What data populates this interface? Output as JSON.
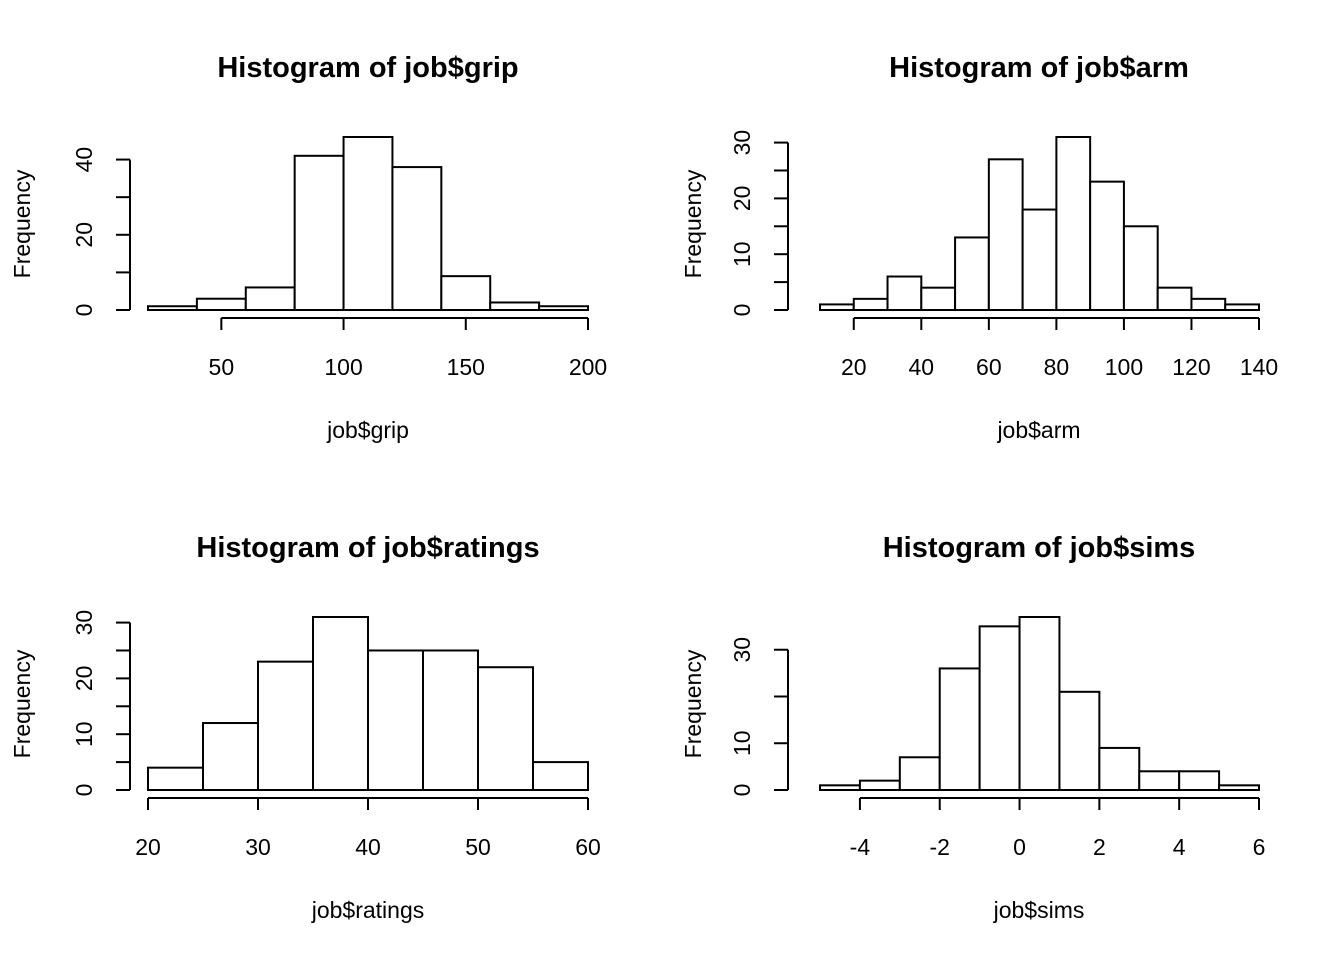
{
  "chart_data": [
    {
      "type": "bar",
      "title": "Histogram of job$grip",
      "xlabel": "job$grip",
      "ylabel": "Frequency",
      "bins": [
        [
          20,
          40
        ],
        [
          40,
          60
        ],
        [
          60,
          80
        ],
        [
          80,
          100
        ],
        [
          100,
          120
        ],
        [
          120,
          140
        ],
        [
          140,
          160
        ],
        [
          160,
          180
        ],
        [
          180,
          200
        ]
      ],
      "values": [
        1,
        3,
        6,
        41,
        46,
        38,
        9,
        2,
        1
      ],
      "xticks": [
        50,
        100,
        150,
        200
      ],
      "xtick_labels": [
        "50",
        "100",
        "150",
        "200"
      ],
      "yticks": [
        0,
        10,
        20,
        30,
        40
      ],
      "ytick_labels": [
        "0",
        "",
        "20",
        "",
        "40"
      ],
      "xlim": [
        20,
        200
      ],
      "ylim": [
        0,
        46
      ],
      "grid": false
    },
    {
      "type": "bar",
      "title": "Histogram of job$arm",
      "xlabel": "job$arm",
      "ylabel": "Frequency",
      "bins": [
        [
          10,
          20
        ],
        [
          20,
          30
        ],
        [
          30,
          40
        ],
        [
          40,
          50
        ],
        [
          50,
          60
        ],
        [
          60,
          70
        ],
        [
          70,
          80
        ],
        [
          80,
          90
        ],
        [
          90,
          100
        ],
        [
          100,
          110
        ],
        [
          110,
          120
        ],
        [
          120,
          130
        ],
        [
          130,
          140
        ]
      ],
      "values": [
        1,
        2,
        6,
        4,
        13,
        27,
        18,
        31,
        23,
        15,
        4,
        2,
        1
      ],
      "xticks": [
        20,
        40,
        60,
        80,
        100,
        120,
        140
      ],
      "xtick_labels": [
        "20",
        "40",
        "60",
        "80",
        "100",
        "120",
        "140"
      ],
      "yticks": [
        0,
        5,
        10,
        15,
        20,
        25,
        30
      ],
      "ytick_labels": [
        "0",
        "",
        "10",
        "",
        "20",
        "",
        "30"
      ],
      "xlim": [
        10,
        140
      ],
      "ylim": [
        0,
        31
      ],
      "grid": false
    },
    {
      "type": "bar",
      "title": "Histogram of job$ratings",
      "xlabel": "job$ratings",
      "ylabel": "Frequency",
      "bins": [
        [
          20,
          25
        ],
        [
          25,
          30
        ],
        [
          30,
          35
        ],
        [
          35,
          40
        ],
        [
          40,
          45
        ],
        [
          45,
          50
        ],
        [
          50,
          55
        ],
        [
          55,
          60
        ]
      ],
      "values": [
        4,
        12,
        23,
        31,
        25,
        25,
        22,
        5
      ],
      "xticks": [
        20,
        30,
        40,
        50,
        60
      ],
      "xtick_labels": [
        "20",
        "30",
        "40",
        "50",
        "60"
      ],
      "yticks": [
        0,
        5,
        10,
        15,
        20,
        25,
        30
      ],
      "ytick_labels": [
        "0",
        "",
        "10",
        "",
        "20",
        "",
        "30"
      ],
      "xlim": [
        20,
        60
      ],
      "ylim": [
        0,
        31
      ],
      "grid": false
    },
    {
      "type": "bar",
      "title": "Histogram of job$sims",
      "xlabel": "job$sims",
      "ylabel": "Frequency",
      "bins": [
        [
          -5,
          -4
        ],
        [
          -4,
          -3
        ],
        [
          -3,
          -2
        ],
        [
          -2,
          -1
        ],
        [
          -1,
          0
        ],
        [
          0,
          1
        ],
        [
          1,
          2
        ],
        [
          2,
          3
        ],
        [
          3,
          4
        ],
        [
          4,
          5
        ],
        [
          5,
          6
        ]
      ],
      "values": [
        1,
        2,
        7,
        26,
        35,
        37,
        21,
        9,
        4,
        4,
        1
      ],
      "xticks": [
        -4,
        -2,
        0,
        2,
        4,
        6
      ],
      "xtick_labels": [
        "-4",
        "-2",
        "0",
        "2",
        "4",
        "6"
      ],
      "yticks": [
        0,
        10,
        20,
        30
      ],
      "ytick_labels": [
        "0",
        "10",
        "",
        "30"
      ],
      "xlim": [
        -5,
        6
      ],
      "ylim": [
        0,
        37
      ],
      "grid": false
    }
  ]
}
